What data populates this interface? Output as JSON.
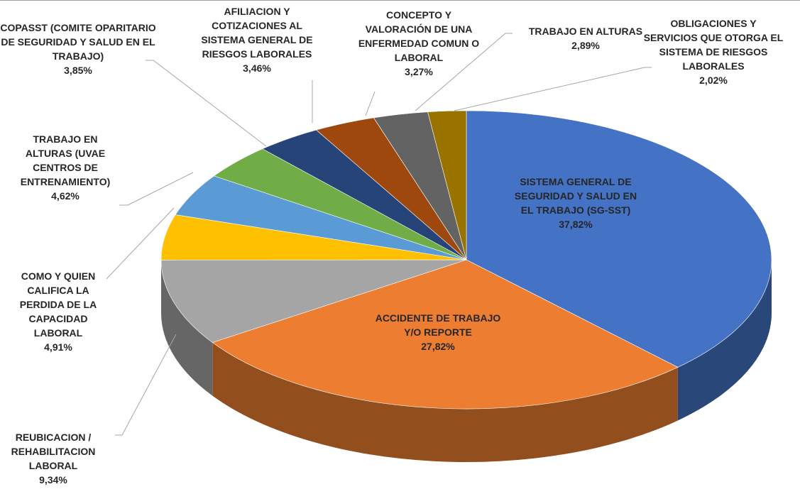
{
  "chart_data": {
    "type": "pie",
    "categories": [
      "SISTEMA GENERAL DE SEGURIDAD Y SALUD EN EL TRABAJO (SG-SST)",
      "ACCIDENTE DE TRABAJO Y/O REPORTE",
      "REUBICACION / REHABILITACION LABORAL",
      "COMO Y QUIEN CALIFICA LA PERDIDA DE LA CAPACIDAD LABORAL",
      "TRABAJO EN ALTURAS (UVAE CENTROS DE ENTRENAMIENTO)",
      "COPASST (COMITE OPARITARIO DE SEGURIDAD Y SALUD EN EL TRABAJO)",
      "AFILIACION Y COTIZACIONES AL SISTEMA GENERAL DE RIESGOS LABORALES",
      "CONCEPTO Y VALORACIÓN DE UNA ENFERMEDAD COMUN O LABORAL",
      "TRABAJO EN ALTURAS",
      "OBLIGACIONES Y SERVICIOS QUE OTORGA EL SISTEMA DE RIESGOS LABORALES"
    ],
    "values": [
      37.82,
      27.82,
      9.34,
      4.91,
      4.62,
      3.85,
      3.46,
      3.27,
      2.89,
      2.02
    ],
    "value_labels": [
      "37,82%",
      "27,82%",
      "9,34%",
      "4,91%",
      "4,62%",
      "3,85%",
      "3,46%",
      "3,27%",
      "2,89%",
      "2,02%"
    ],
    "colors": [
      "#4472c4",
      "#ed7d31",
      "#a5a5a5",
      "#ffc000",
      "#5b9bd5",
      "#70ad47",
      "#264478",
      "#9e480e",
      "#636363",
      "#997300"
    ]
  }
}
